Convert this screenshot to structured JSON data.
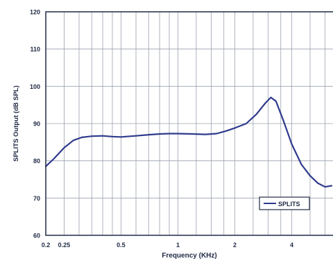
{
  "chart_data": {
    "type": "line",
    "title": "",
    "xlabel": "Frequency (KHz)",
    "ylabel": "SPLITS Output (dB SPL)",
    "x_scale": "log",
    "xlim": [
      0.2,
      6.5
    ],
    "ylim": [
      60,
      120
    ],
    "grid": true,
    "legend": "lower-right",
    "x_ticks": [
      {
        "value": 0.2,
        "label": "0.2"
      },
      {
        "value": 0.25,
        "label": "0.25"
      },
      {
        "value": 0.5,
        "label": "0.5"
      },
      {
        "value": 1,
        "label": "1"
      },
      {
        "value": 2,
        "label": "2"
      },
      {
        "value": 4,
        "label": "4"
      }
    ],
    "x_minor_grid": [
      0.3,
      0.35,
      0.4,
      0.45,
      0.6,
      0.7,
      0.8,
      0.9,
      1.25,
      1.5,
      1.75,
      2.5,
      3,
      3.5,
      5,
      6
    ],
    "y_ticks": [
      60,
      70,
      80,
      90,
      100,
      110,
      120
    ],
    "series": [
      {
        "name": "SPLITS",
        "color": "#2e3a8c",
        "points": [
          [
            0.2,
            78.5
          ],
          [
            0.22,
            80.5
          ],
          [
            0.25,
            83.5
          ],
          [
            0.28,
            85.5
          ],
          [
            0.31,
            86.3
          ],
          [
            0.35,
            86.6
          ],
          [
            0.4,
            86.7
          ],
          [
            0.45,
            86.5
          ],
          [
            0.5,
            86.4
          ],
          [
            0.6,
            86.7
          ],
          [
            0.7,
            87.0
          ],
          [
            0.8,
            87.2
          ],
          [
            0.9,
            87.3
          ],
          [
            1.0,
            87.3
          ],
          [
            1.2,
            87.2
          ],
          [
            1.4,
            87.1
          ],
          [
            1.6,
            87.3
          ],
          [
            1.8,
            88.0
          ],
          [
            2.0,
            88.8
          ],
          [
            2.3,
            90.0
          ],
          [
            2.6,
            92.5
          ],
          [
            2.9,
            95.5
          ],
          [
            3.1,
            97.0
          ],
          [
            3.3,
            96.0
          ],
          [
            3.6,
            91.0
          ],
          [
            4.0,
            84.5
          ],
          [
            4.5,
            79.0
          ],
          [
            5.0,
            76.0
          ],
          [
            5.5,
            74.0
          ],
          [
            6.0,
            73.0
          ],
          [
            6.5,
            73.3
          ]
        ]
      }
    ]
  }
}
